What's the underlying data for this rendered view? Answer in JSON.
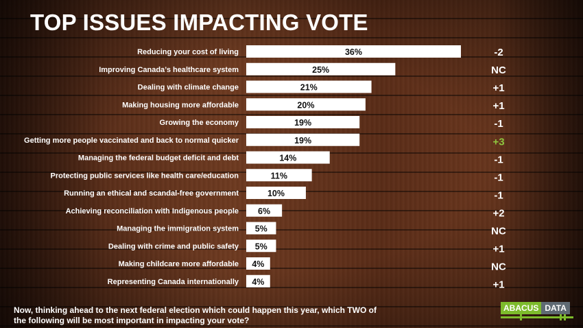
{
  "title": "TOP ISSUES IMPACTING VOTE",
  "footnote": "Now, thinking ahead to the next federal election which could happen this year, which TWO of the following will be most important in impacting your vote?",
  "logo": {
    "part1": "ABACUS",
    "part2": "DATA"
  },
  "colors": {
    "bar": "#ffffff",
    "text": "#ffffff",
    "positive_highlight": "#8fc63f",
    "logo_green": "#7dbb2c",
    "logo_gray": "#5f6a73"
  },
  "chart_data": {
    "type": "bar",
    "orientation": "horizontal",
    "categories": [
      "Reducing your cost of living",
      "Improving Canada’s healthcare system",
      "Dealing with climate change",
      "Making housing more affordable",
      "Growing the economy",
      "Getting more people vaccinated and back to normal quicker",
      "Managing the federal budget deficit and debt",
      "Protecting public services like health care/education",
      "Running an ethical and scandal-free government",
      "Achieving reconciliation with Indigenous people",
      "Managing the immigration system",
      "Dealing with crime and public safety",
      "Making childcare more affordable",
      "Representing Canada internationally"
    ],
    "values": [
      36,
      25,
      21,
      20,
      19,
      19,
      14,
      11,
      10,
      6,
      5,
      5,
      4,
      4
    ],
    "value_labels": [
      "36%",
      "25%",
      "21%",
      "20%",
      "19%",
      "19%",
      "14%",
      "11%",
      "10%",
      "6%",
      "5%",
      "5%",
      "4%",
      "4%"
    ],
    "changes": [
      "-2",
      "NC",
      "+1",
      "+1",
      "-1",
      "+3",
      "-1",
      "-1",
      "-1",
      "+2",
      "NC",
      "+1",
      "NC",
      "+1"
    ],
    "highlighted_change_index": 5,
    "xlim": [
      0,
      40
    ]
  }
}
